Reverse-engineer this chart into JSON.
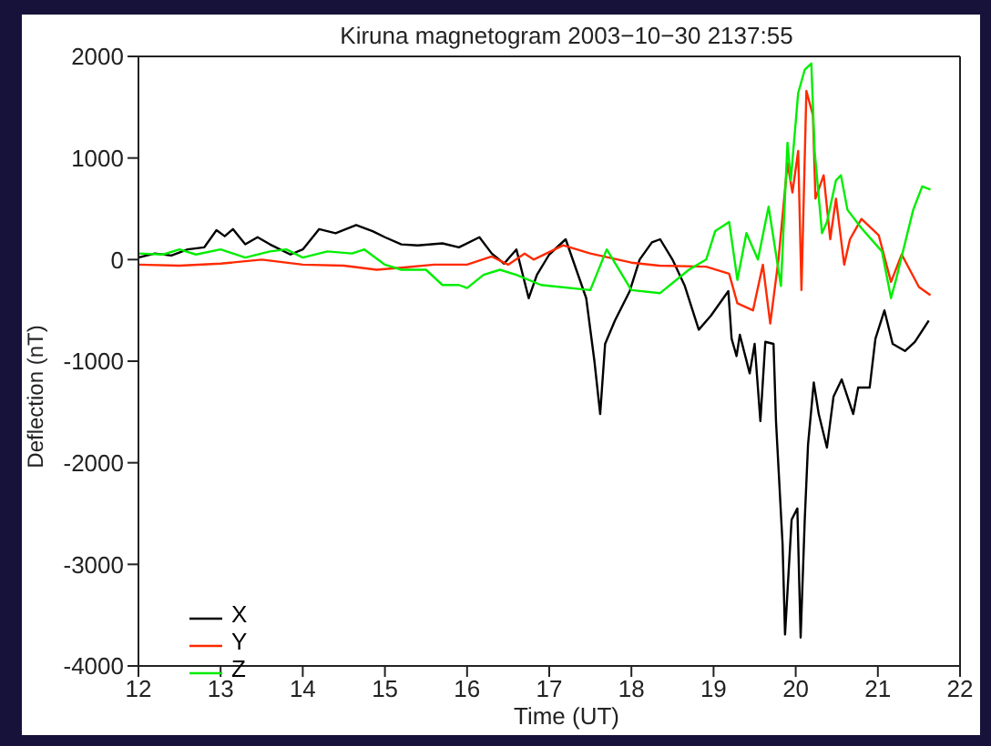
{
  "chart_data": {
    "type": "line",
    "title": "Kiruna magnetogram 2003−10−30 2137:55",
    "xlabel": "Time (UT)",
    "ylabel": "Deflection (nT)",
    "xlim": [
      12,
      22
    ],
    "xticks": [
      12,
      13,
      14,
      15,
      16,
      17,
      18,
      19,
      20,
      21,
      22
    ],
    "ylim": [
      -4000,
      2000
    ],
    "yticks": [
      -4000,
      -3000,
      -2000,
      -1000,
      0,
      1000,
      2000
    ],
    "legend": "bottom left",
    "marker": "none",
    "line_style": "solid",
    "series": [
      {
        "name": "X",
        "color": "#000000",
        "x": [
          12.0,
          12.2,
          12.4,
          12.6,
          12.8,
          12.95,
          13.05,
          13.15,
          13.3,
          13.45,
          13.6,
          13.85,
          14.0,
          14.2,
          14.4,
          14.65,
          14.85,
          15.0,
          15.2,
          15.4,
          15.7,
          15.9,
          16.15,
          16.3,
          16.45,
          16.6,
          16.75,
          16.85,
          17.0,
          17.2,
          17.45,
          17.55,
          17.62,
          17.68,
          17.8,
          17.98,
          18.1,
          18.25,
          18.35,
          18.5,
          18.65,
          18.82,
          18.97,
          19.18,
          19.22,
          19.28,
          19.32,
          19.44,
          19.5,
          19.57,
          19.63,
          19.73,
          19.76,
          19.84,
          19.87,
          19.95,
          20.02,
          20.06,
          20.11,
          20.15,
          20.22,
          20.28,
          20.38,
          20.46,
          20.56,
          20.7,
          20.76,
          20.9,
          20.97,
          21.08,
          21.18,
          21.33,
          21.45,
          21.62
        ],
        "values": [
          20,
          60,
          40,
          100,
          120,
          290,
          230,
          300,
          150,
          220,
          150,
          50,
          100,
          300,
          260,
          340,
          280,
          220,
          150,
          140,
          160,
          120,
          220,
          60,
          -40,
          100,
          -380,
          -150,
          50,
          200,
          -380,
          -1000,
          -1520,
          -830,
          -600,
          -310,
          0,
          170,
          200,
          0,
          -260,
          -690,
          -550,
          -310,
          -780,
          -950,
          -740,
          -1120,
          -830,
          -1590,
          -810,
          -830,
          -1590,
          -2800,
          -3690,
          -2560,
          -2450,
          -3720,
          -2560,
          -1820,
          -1210,
          -1520,
          -1850,
          -1350,
          -1180,
          -1520,
          -1260,
          -1260,
          -780,
          -500,
          -830,
          -900,
          -810,
          -600
        ]
      },
      {
        "name": "Y",
        "color": "#ff2a00",
        "x": [
          12.0,
          12.5,
          13.0,
          13.5,
          14.0,
          14.5,
          14.9,
          15.2,
          15.6,
          16.0,
          16.3,
          16.5,
          16.7,
          16.81,
          17.17,
          17.5,
          18.0,
          18.34,
          18.91,
          19.19,
          19.29,
          19.48,
          19.6,
          19.69,
          19.79,
          19.9,
          19.96,
          20.03,
          20.07,
          20.13,
          20.21,
          20.24,
          20.34,
          20.42,
          20.49,
          20.59,
          20.66,
          20.8,
          21.01,
          21.16,
          21.29,
          21.5,
          21.64
        ],
        "values": [
          -50,
          -60,
          -40,
          0,
          -50,
          -60,
          -100,
          -80,
          -50,
          -50,
          30,
          -50,
          60,
          0,
          140,
          60,
          -30,
          -60,
          -70,
          -140,
          -430,
          -500,
          -50,
          -630,
          0,
          950,
          660,
          1070,
          -300,
          1660,
          1420,
          600,
          830,
          200,
          600,
          -50,
          200,
          400,
          240,
          -220,
          50,
          -270,
          -350
        ]
      },
      {
        "name": "Z",
        "color": "#00ee00",
        "x": [
          12.0,
          12.3,
          12.5,
          12.7,
          13.0,
          13.3,
          13.6,
          13.8,
          14.0,
          14.3,
          14.6,
          14.75,
          15.0,
          15.2,
          15.5,
          15.7,
          15.9,
          16.0,
          16.2,
          16.4,
          16.6,
          16.9,
          17.5,
          17.7,
          18.0,
          18.35,
          18.7,
          18.91,
          19.02,
          19.19,
          19.29,
          19.4,
          19.54,
          19.67,
          19.82,
          19.9,
          19.94,
          20.03,
          20.11,
          20.19,
          20.23,
          20.32,
          20.38,
          20.49,
          20.55,
          20.63,
          20.8,
          21.05,
          21.16,
          21.22,
          21.43,
          21.54,
          21.64
        ],
        "values": [
          60,
          50,
          100,
          50,
          100,
          20,
          80,
          100,
          20,
          80,
          60,
          100,
          -50,
          -100,
          -100,
          -250,
          -250,
          -280,
          -150,
          -100,
          -150,
          -250,
          -300,
          100,
          -300,
          -330,
          -100,
          0,
          280,
          370,
          -200,
          260,
          0,
          520,
          -260,
          1150,
          780,
          1640,
          1870,
          1930,
          1070,
          260,
          370,
          780,
          830,
          490,
          310,
          80,
          -380,
          -200,
          490,
          720,
          690
        ]
      }
    ]
  }
}
